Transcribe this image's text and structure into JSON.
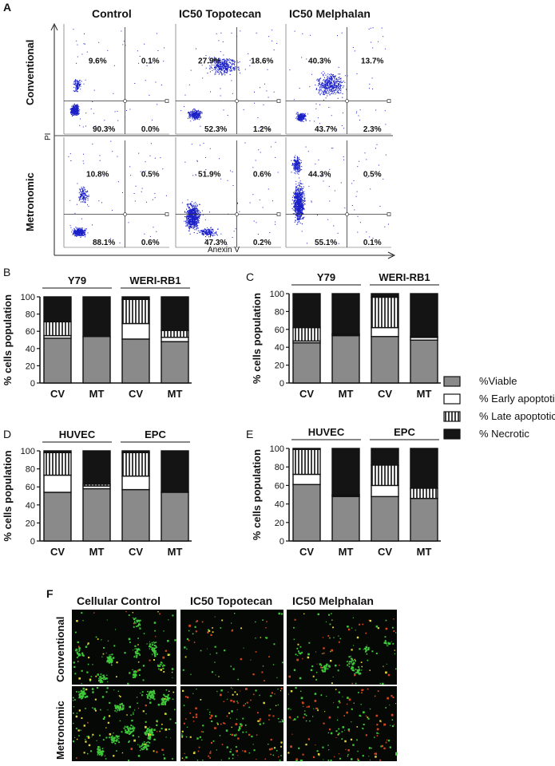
{
  "figure": {
    "panel_letters": {
      "a": "A",
      "b": "B",
      "c": "C",
      "d": "D",
      "e": "E",
      "f": "F"
    }
  },
  "panel_a": {
    "columns": [
      "Control",
      "IC50 Topotecan",
      "IC50 Melphalan"
    ],
    "rows": [
      "Conventional",
      "Metronomic"
    ],
    "x_axis_label": "Anexin V",
    "y_axis_label": "PI",
    "quadrant_values": [
      [
        {
          "ul": "9.6%",
          "ur": "0.1%",
          "ll": "90.3%",
          "lr": "0.0%"
        },
        {
          "ul": "27.9%",
          "ur": "18.6%",
          "ll": "52.3%",
          "lr": "1.2%"
        },
        {
          "ul": "40.3%",
          "ur": "13.7%",
          "ll": "43.7%",
          "lr": "2.3%"
        }
      ],
      [
        {
          "ul": "10.8%",
          "ur": "0.5%",
          "ll": "88.1%",
          "lr": "0.6%"
        },
        {
          "ul": "51.9%",
          "ur": "0.6%",
          "ll": "47.3%",
          "lr": "0.2%"
        },
        {
          "ul": "44.3%",
          "ur": "0.5%",
          "ll": "55.1%",
          "lr": "0.1%"
        }
      ]
    ]
  },
  "legend": {
    "entries": [
      {
        "label": "%Viable",
        "pattern": "viable"
      },
      {
        "label": "% Early apoptotic",
        "pattern": "early"
      },
      {
        "label": "% Late apoptotic",
        "pattern": "late"
      },
      {
        "label": "% Necrotic",
        "pattern": "necrotic"
      }
    ]
  },
  "colors": {
    "viable": "#8a8a8a",
    "early": "#ffffff",
    "late_stripe": "#111111",
    "necrotic": "#141414",
    "scatter_dot": "#1a1fc8"
  },
  "panel_f": {
    "columns": [
      "Cellular Control",
      "IC50 Topotecan",
      "IC50 Melphalan"
    ],
    "rows": [
      "Conventional",
      "Metronomic"
    ]
  },
  "chart_data": [
    {
      "panel": "B",
      "type": "bar",
      "stacked": true,
      "groups": [
        "Y79",
        "WERI-RB1"
      ],
      "categories": [
        "CV",
        "MT",
        "CV",
        "MT"
      ],
      "ylabel": "% cells population",
      "ylim": [
        0,
        100
      ],
      "yticks": [
        0,
        20,
        40,
        60,
        80,
        100
      ],
      "series": [
        {
          "name": "%Viable",
          "values": [
            52,
            54,
            51,
            48
          ]
        },
        {
          "name": "% Early apoptotic",
          "values": [
            3,
            0,
            18,
            5
          ]
        },
        {
          "name": "% Late apoptotic",
          "values": [
            16,
            0,
            28,
            8
          ]
        },
        {
          "name": "% Necrotic",
          "values": [
            29,
            46,
            3,
            39
          ]
        }
      ]
    },
    {
      "panel": "C",
      "type": "bar",
      "stacked": true,
      "groups": [
        "Y79",
        "WERI-RB1"
      ],
      "categories": [
        "CV",
        "MT",
        "CV",
        "MT"
      ],
      "ylabel": "% cells population",
      "ylim": [
        0,
        100
      ],
      "yticks": [
        0,
        20,
        40,
        60,
        80,
        100
      ],
      "series": [
        {
          "name": "%Viable",
          "values": [
            45,
            53,
            52,
            48
          ]
        },
        {
          "name": "% Early apoptotic",
          "values": [
            2,
            1,
            10,
            3
          ]
        },
        {
          "name": "% Late apoptotic",
          "values": [
            15,
            1,
            34,
            1
          ]
        },
        {
          "name": "% Necrotic",
          "values": [
            38,
            45,
            4,
            48
          ]
        }
      ]
    },
    {
      "panel": "D",
      "type": "bar",
      "stacked": true,
      "groups": [
        "HUVEC",
        "EPC"
      ],
      "categories": [
        "CV",
        "MT",
        "CV",
        "MT"
      ],
      "ylabel": "% cells population",
      "ylim": [
        0,
        100
      ],
      "yticks": [
        0,
        20,
        40,
        60,
        80,
        100
      ],
      "series": [
        {
          "name": "%Viable",
          "values": [
            54,
            58,
            57,
            54
          ]
        },
        {
          "name": "% Early apoptotic",
          "values": [
            19,
            3,
            15,
            0
          ]
        },
        {
          "name": "% Late apoptotic",
          "values": [
            25,
            2,
            26,
            0
          ]
        },
        {
          "name": "% Necrotic",
          "values": [
            2,
            37,
            2,
            46
          ]
        }
      ]
    },
    {
      "panel": "E",
      "type": "bar",
      "stacked": true,
      "groups": [
        "HUVEC",
        "EPC"
      ],
      "categories": [
        "CV",
        "MT",
        "CV",
        "MT"
      ],
      "ylabel": "% cells population",
      "ylim": [
        0,
        100
      ],
      "yticks": [
        0,
        20,
        40,
        60,
        80,
        100
      ],
      "series": [
        {
          "name": "%Viable",
          "values": [
            61,
            48,
            48,
            46
          ]
        },
        {
          "name": "% Early apoptotic",
          "values": [
            11,
            1,
            12,
            0
          ]
        },
        {
          "name": "% Late apoptotic",
          "values": [
            27,
            1,
            22,
            11
          ]
        },
        {
          "name": "% Necrotic",
          "values": [
            1,
            50,
            18,
            43
          ]
        }
      ]
    }
  ]
}
